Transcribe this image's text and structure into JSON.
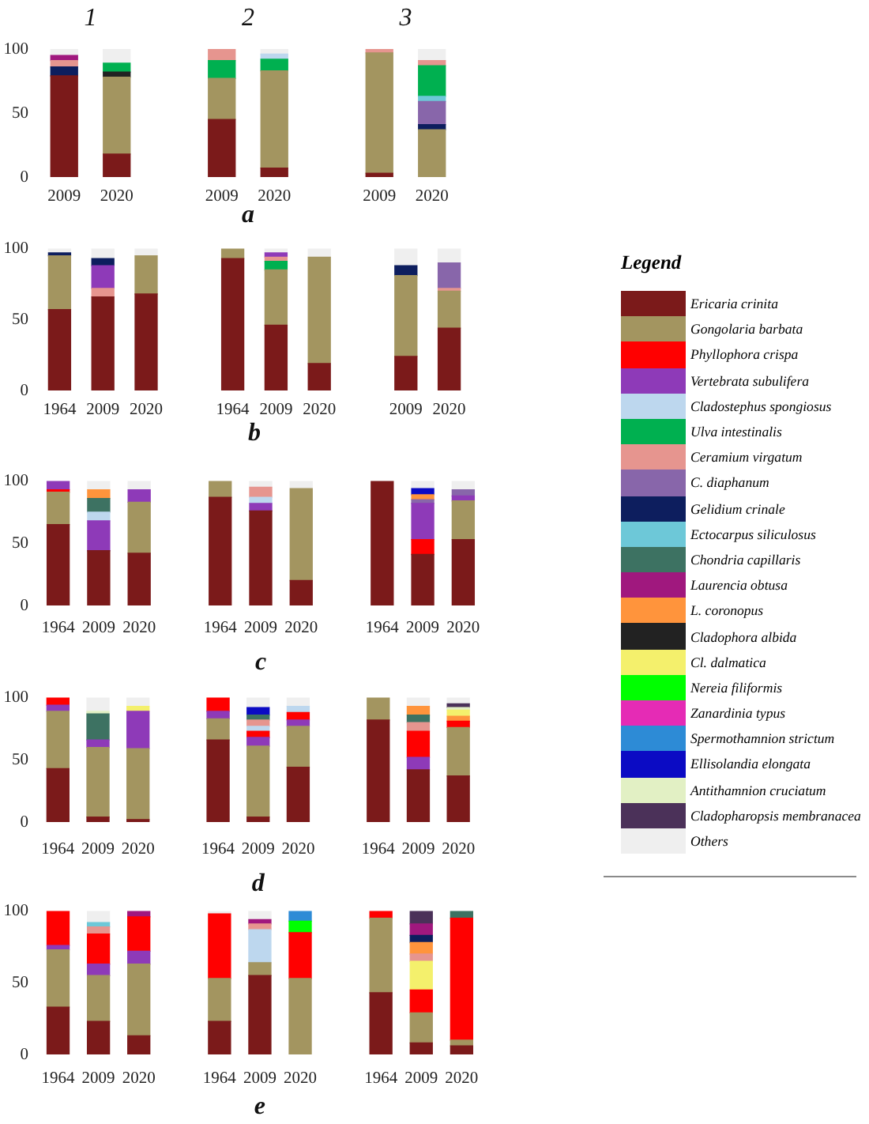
{
  "chart_data": [
    {
      "type": "bar",
      "stacked": true,
      "annotations": [
        "1",
        "2",
        "3"
      ],
      "xlabel": "a",
      "categories": [
        "2009",
        "2020",
        null,
        "2009",
        "2020",
        null,
        "2009",
        "2020"
      ],
      "ylim": [
        0,
        100
      ],
      "yticks": [
        0,
        50,
        100
      ],
      "series": [
        {
          "color": "#7b1a1a",
          "values": [
            79,
            18,
            null,
            45,
            7,
            null,
            3,
            null
          ]
        },
        {
          "color": "#a39560",
          "values": [
            null,
            60,
            null,
            32,
            76,
            null,
            94,
            37
          ]
        },
        {
          "color": "#222222",
          "values": [
            null,
            4,
            null,
            null,
            null,
            null,
            null,
            null
          ]
        },
        {
          "color": "#0d1e5e",
          "values": [
            7,
            null,
            null,
            null,
            null,
            null,
            null,
            4
          ]
        },
        {
          "color": "#8866aa",
          "values": [
            null,
            null,
            null,
            null,
            null,
            null,
            null,
            18
          ]
        },
        {
          "color": "#6dc8d8",
          "values": [
            null,
            null,
            null,
            null,
            null,
            null,
            null,
            4
          ]
        },
        {
          "color": "#00b050",
          "values": [
            null,
            7,
            null,
            14,
            9,
            null,
            null,
            24
          ]
        },
        {
          "color": "#bdd7ee",
          "values": [
            null,
            null,
            null,
            null,
            4,
            null,
            null,
            null
          ]
        },
        {
          "color": "#e6958f",
          "values": [
            5,
            null,
            null,
            9,
            null,
            null,
            3,
            4
          ]
        },
        {
          "color": "#a0187e",
          "values": [
            4,
            null,
            null,
            null,
            null,
            null,
            null,
            null
          ]
        },
        {
          "color": "#efefef",
          "values": [
            5,
            11,
            null,
            null,
            4,
            null,
            null,
            9
          ]
        }
      ]
    },
    {
      "type": "bar",
      "stacked": true,
      "xlabel": "b",
      "categories": [
        "1964",
        "2009",
        "2020",
        null,
        "1964",
        "2009",
        "2020",
        null,
        "2009",
        "2020"
      ],
      "ylim": [
        0,
        100
      ],
      "yticks": [
        0,
        50,
        100
      ],
      "series": [
        {
          "color": "#7b1a1a",
          "values": [
            57,
            66,
            68,
            null,
            93,
            46,
            19,
            null,
            24,
            44
          ]
        },
        {
          "color": "#a39560",
          "values": [
            38,
            null,
            27,
            null,
            7,
            39,
            75,
            null,
            57,
            26
          ]
        },
        {
          "color": "#00b050",
          "values": [
            null,
            null,
            null,
            null,
            null,
            6,
            null,
            null,
            null,
            null
          ]
        },
        {
          "color": "#e6958f",
          "values": [
            null,
            6,
            null,
            null,
            null,
            3,
            null,
            null,
            null,
            2
          ]
        },
        {
          "color": "#8e3ab8",
          "values": [
            null,
            16,
            null,
            null,
            null,
            3,
            null,
            null,
            null,
            null
          ]
        },
        {
          "color": "#0d1e5e",
          "values": [
            2,
            5,
            null,
            null,
            null,
            null,
            null,
            null,
            7,
            null
          ]
        },
        {
          "color": "#8866aa",
          "values": [
            null,
            null,
            null,
            null,
            null,
            null,
            null,
            null,
            null,
            18
          ]
        },
        {
          "color": "#efefef",
          "values": [
            3,
            7,
            5,
            null,
            null,
            3,
            6,
            null,
            12,
            10
          ]
        }
      ]
    },
    {
      "type": "bar",
      "stacked": true,
      "xlabel": "c",
      "categories": [
        "1964",
        "2009",
        "2020",
        null,
        "1964",
        "2009",
        "2020",
        null,
        "1964",
        "2009",
        "2020"
      ],
      "ylim": [
        0,
        100
      ],
      "yticks": [
        0,
        50,
        100
      ],
      "legend": "right",
      "legend_title": "Legend",
      "series": [
        {
          "name": "Ericaria crinita",
          "color": "#7b1a1a",
          "values": [
            65,
            44,
            42,
            null,
            87,
            76,
            20,
            null,
            100,
            41,
            53
          ]
        },
        {
          "name": "Gongolaria barbata",
          "color": "#a39560",
          "values": [
            26,
            null,
            41,
            null,
            13,
            null,
            74,
            null,
            null,
            null,
            31
          ]
        },
        {
          "name": "Phyllophora crispa",
          "color": "#ff0000",
          "values": [
            2,
            null,
            null,
            null,
            null,
            null,
            null,
            null,
            null,
            12,
            null
          ]
        },
        {
          "name": "Vertebrata subulifera",
          "color": "#8e3ab8",
          "values": [
            7,
            24,
            10,
            null,
            null,
            6,
            null,
            null,
            null,
            29,
            4
          ]
        },
        {
          "name": "Cladostephus spongiosus",
          "color": "#bdd7ee",
          "values": [
            null,
            7,
            null,
            null,
            null,
            5,
            null,
            null,
            null,
            null,
            null
          ]
        },
        {
          "name": "Ulva intestinalis",
          "color": "#00b050",
          "values": [
            null,
            null,
            null,
            null,
            null,
            null,
            null,
            null,
            null,
            null,
            null
          ]
        },
        {
          "name": "Ceramium virgatum",
          "color": "#e6958f",
          "values": [
            null,
            null,
            null,
            null,
            null,
            8,
            null,
            null,
            null,
            null,
            null
          ]
        },
        {
          "name": "C. diaphanum",
          "color": "#8866aa",
          "values": [
            null,
            null,
            null,
            null,
            null,
            null,
            null,
            null,
            null,
            3,
            5
          ]
        },
        {
          "name": "Gelidium crinale",
          "color": "#0d1e5e",
          "values": [
            null,
            null,
            null,
            null,
            null,
            null,
            null,
            null,
            null,
            null,
            null
          ]
        },
        {
          "name": "Ectocarpus siliculosus",
          "color": "#6dc8d8",
          "values": [
            null,
            null,
            null,
            null,
            null,
            null,
            null,
            null,
            null,
            null,
            null
          ]
        },
        {
          "name": "Chondria capillaris",
          "color": "#3d7262",
          "values": [
            null,
            11,
            null,
            null,
            null,
            null,
            null,
            null,
            null,
            null,
            null
          ]
        },
        {
          "name": "Laurencia obtusa",
          "color": "#a0187e",
          "values": [
            null,
            null,
            null,
            null,
            null,
            null,
            null,
            null,
            null,
            null,
            null
          ]
        },
        {
          "name": "L. coronopus",
          "color": "#ff943c",
          "values": [
            null,
            7,
            null,
            null,
            null,
            null,
            null,
            null,
            null,
            4,
            null
          ]
        },
        {
          "name": "Cladophora albida",
          "color": "#222222",
          "values": [
            null,
            null,
            null,
            null,
            null,
            null,
            null,
            null,
            null,
            null,
            null
          ]
        },
        {
          "name": "Cl. dalmatica",
          "color": "#f4f06c",
          "values": [
            null,
            null,
            null,
            null,
            null,
            null,
            null,
            null,
            null,
            null,
            null
          ]
        },
        {
          "name": "Nereia filiformis",
          "color": "#00ff00",
          "values": [
            null,
            null,
            null,
            null,
            null,
            null,
            null,
            null,
            null,
            null,
            null
          ]
        },
        {
          "name": "Zanardinia typus",
          "color": "#e52bb5",
          "values": [
            null,
            null,
            null,
            null,
            null,
            null,
            null,
            null,
            null,
            null,
            null
          ]
        },
        {
          "name": "Spermothamnion strictum",
          "color": "#2d8bd6",
          "values": [
            null,
            null,
            null,
            null,
            null,
            null,
            null,
            null,
            null,
            null,
            null
          ]
        },
        {
          "name": "Ellisolandia elongata",
          "color": "#0b0bc4",
          "values": [
            null,
            null,
            null,
            null,
            null,
            null,
            null,
            null,
            null,
            5,
            null
          ]
        },
        {
          "name": "Antithamnion cruciatum",
          "color": "#e2f0c4",
          "values": [
            null,
            null,
            null,
            null,
            null,
            null,
            null,
            null,
            null,
            null,
            null
          ]
        },
        {
          "name": "Cladopharopsis membranacea",
          "color": "#4b3159",
          "values": [
            null,
            null,
            null,
            null,
            null,
            null,
            null,
            null,
            null,
            null,
            null
          ]
        },
        {
          "name": "Others",
          "color": "#efefef",
          "values": [
            null,
            7,
            7,
            null,
            null,
            5,
            6,
            null,
            null,
            6,
            7
          ]
        }
      ]
    },
    {
      "type": "bar",
      "stacked": true,
      "xlabel": "d",
      "categories": [
        "1964",
        "2009",
        "2020",
        null,
        "1964",
        "2009",
        "2020",
        null,
        "1964",
        "2009",
        "2020"
      ],
      "ylim": [
        0,
        100
      ],
      "yticks": [
        0,
        50,
        100
      ],
      "series": [
        {
          "color": "#7b1a1a",
          "values": [
            43,
            4,
            2,
            null,
            66,
            4,
            44,
            null,
            82,
            42,
            37
          ]
        },
        {
          "color": "#a39560",
          "values": [
            46,
            56,
            57,
            null,
            17,
            57,
            33,
            null,
            18,
            null,
            39
          ]
        },
        {
          "color": "#8e3ab8",
          "values": [
            5,
            6,
            30,
            null,
            6,
            7,
            5,
            null,
            null,
            10,
            null
          ]
        },
        {
          "color": "#ff0000",
          "values": [
            6,
            null,
            null,
            null,
            11,
            5,
            6,
            null,
            null,
            21,
            5
          ]
        },
        {
          "color": "#bdd7ee",
          "values": [
            null,
            null,
            null,
            null,
            null,
            4,
            5,
            null,
            null,
            null,
            null
          ]
        },
        {
          "color": "#e6958f",
          "values": [
            null,
            null,
            null,
            null,
            null,
            5,
            null,
            null,
            null,
            7,
            null
          ]
        },
        {
          "color": "#3d7262",
          "values": [
            null,
            21,
            null,
            null,
            null,
            4,
            null,
            null,
            null,
            6,
            null
          ]
        },
        {
          "color": "#0b0bc4",
          "values": [
            null,
            null,
            null,
            null,
            null,
            6,
            null,
            null,
            null,
            null,
            null
          ]
        },
        {
          "color": "#ff943c",
          "values": [
            null,
            null,
            null,
            null,
            null,
            null,
            null,
            null,
            null,
            7,
            4
          ]
        },
        {
          "color": "#f4f06c",
          "values": [
            null,
            null,
            4,
            null,
            null,
            null,
            null,
            null,
            null,
            null,
            5
          ]
        },
        {
          "color": "#e2f0c4",
          "values": [
            null,
            2,
            null,
            null,
            null,
            null,
            null,
            null,
            null,
            null,
            2
          ]
        },
        {
          "color": "#4b3159",
          "values": [
            null,
            null,
            null,
            null,
            null,
            null,
            null,
            null,
            null,
            null,
            3
          ]
        },
        {
          "color": "#efefef",
          "values": [
            null,
            11,
            7,
            null,
            null,
            8,
            7,
            null,
            null,
            7,
            5
          ]
        }
      ]
    },
    {
      "type": "bar",
      "stacked": true,
      "xlabel": "e",
      "categories": [
        "1964",
        "2009",
        "2020",
        null,
        "1964",
        "2009",
        "2020",
        null,
        "1964",
        "2009",
        "2020"
      ],
      "ylim": [
        0,
        100
      ],
      "yticks": [
        0,
        50,
        100
      ],
      "series": [
        {
          "color": "#7b1a1a",
          "values": [
            33,
            23,
            13,
            null,
            23,
            55,
            null,
            null,
            43,
            8,
            6
          ]
        },
        {
          "color": "#a39560",
          "values": [
            40,
            32,
            50,
            null,
            30,
            9,
            53,
            null,
            52,
            21,
            4
          ]
        },
        {
          "color": "#8e3ab8",
          "values": [
            3,
            8,
            9,
            null,
            null,
            null,
            null,
            null,
            null,
            null,
            null
          ]
        },
        {
          "color": "#ff0000",
          "values": [
            24,
            21,
            24,
            null,
            45,
            null,
            32,
            null,
            5,
            16,
            85
          ]
        },
        {
          "color": "#bdd7ee",
          "values": [
            null,
            null,
            null,
            null,
            null,
            23,
            null,
            null,
            null,
            null,
            null
          ]
        },
        {
          "color": "#f4f06c",
          "values": [
            null,
            null,
            null,
            null,
            null,
            null,
            null,
            null,
            null,
            20,
            null
          ]
        },
        {
          "color": "#e6958f",
          "values": [
            null,
            5,
            null,
            null,
            null,
            4,
            null,
            null,
            null,
            5,
            null
          ]
        },
        {
          "color": "#6dc8d8",
          "values": [
            null,
            3,
            null,
            null,
            null,
            null,
            null,
            null,
            null,
            null,
            null
          ]
        },
        {
          "color": "#ff943c",
          "values": [
            null,
            null,
            null,
            null,
            null,
            null,
            null,
            null,
            null,
            8,
            null
          ]
        },
        {
          "color": "#0d1e5e",
          "values": [
            null,
            null,
            null,
            null,
            null,
            null,
            null,
            null,
            null,
            5,
            null
          ]
        },
        {
          "color": "#a0187e",
          "values": [
            null,
            null,
            4,
            null,
            null,
            3,
            null,
            null,
            null,
            8,
            null
          ]
        },
        {
          "color": "#4b3159",
          "values": [
            null,
            null,
            null,
            null,
            null,
            null,
            null,
            null,
            null,
            9,
            null
          ]
        },
        {
          "color": "#00ff00",
          "values": [
            null,
            null,
            null,
            null,
            null,
            null,
            8,
            null,
            null,
            null,
            null
          ]
        },
        {
          "color": "#2d8bd6",
          "values": [
            null,
            null,
            null,
            null,
            null,
            null,
            7,
            null,
            null,
            null,
            null
          ]
        },
        {
          "color": "#3d7262",
          "values": [
            null,
            null,
            null,
            null,
            null,
            null,
            null,
            null,
            null,
            null,
            5
          ]
        },
        {
          "color": "#efefef",
          "values": [
            null,
            8,
            null,
            null,
            2,
            6,
            null,
            null,
            null,
            null,
            null
          ]
        }
      ]
    }
  ]
}
